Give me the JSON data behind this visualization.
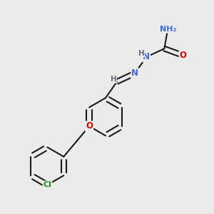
{
  "background_color": "#ebebeb",
  "bond_color": "#1a1a1a",
  "atom_colors": {
    "N": "#4169E1",
    "O": "#CC0000",
    "Cl": "#228B22",
    "H": "#607080",
    "C": "#1a1a1a"
  },
  "figsize": [
    3.0,
    3.0
  ],
  "dpi": 100
}
